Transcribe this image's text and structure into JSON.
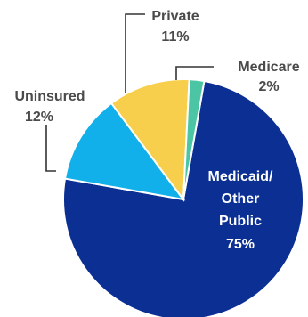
{
  "chart_data": {
    "type": "pie",
    "title": "",
    "slices": [
      {
        "label": "Medicaid/ Other Public",
        "value": 75,
        "value_label": "75%",
        "color": "#0b2f93"
      },
      {
        "label": "Uninsured",
        "value": 12,
        "value_label": "12%",
        "color": "#12b0ea"
      },
      {
        "label": "Private",
        "value": 11,
        "value_label": "11%",
        "color": "#f7cf4d"
      },
      {
        "label": "Medicare",
        "value": 2,
        "value_label": "2%",
        "color": "#4cc5a4"
      }
    ]
  },
  "labels": {
    "medicaid_line1": "Medicaid/",
    "medicaid_line2": "Other",
    "medicaid_line3": "Public",
    "medicaid_value": "75%",
    "uninsured_name": "Uninsured",
    "uninsured_value": "12%",
    "private_name": "Private",
    "private_value": "11%",
    "medicare_name": "Medicare",
    "medicare_value": "2%"
  }
}
